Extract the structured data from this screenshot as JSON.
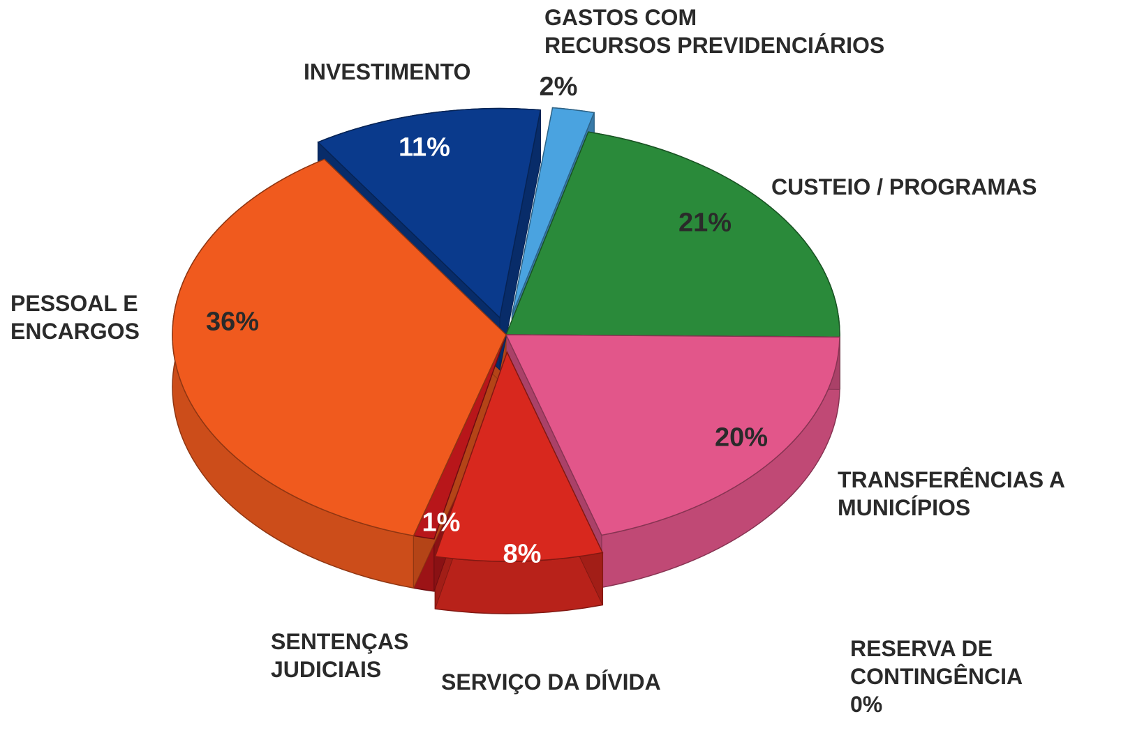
{
  "chart_data": {
    "type": "pie",
    "categories": [
      "GASTOS COM\nRECURSOS PREVIDENCIÁRIOS",
      "CUSTEIO / PROGRAMAS",
      "RESERVA DE\nCONTINGÊNCIA",
      "TRANSFERÊNCIAS A\nMUNICÍPIOS",
      "SERVIÇO DA DÍVIDA",
      "SENTENÇAS\nJUDICIAIS",
      "PESSOAL E\nENCARGOS",
      "INVESTIMENTO"
    ],
    "values": [
      2,
      21,
      0,
      20,
      8,
      1,
      36,
      11
    ],
    "value_labels": [
      "2%",
      "21%",
      "0%",
      "20%",
      "8%",
      "1%",
      "36%",
      "11%"
    ],
    "colors": [
      "#4aa3e0",
      "#2a8a3a",
      "#1f6a2a",
      "#e2568a",
      "#d8281e",
      "#b8161a",
      "#f05a1e",
      "#0a3a8c"
    ]
  }
}
